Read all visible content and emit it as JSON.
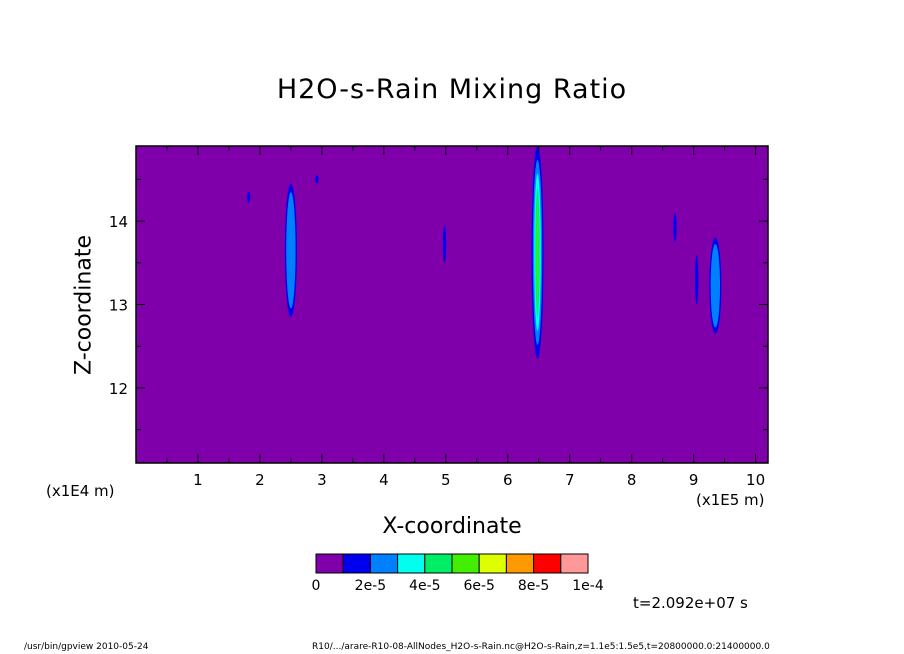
{
  "chart_data": {
    "type": "heatmap",
    "title": "H2O-s-Rain Mixing Ratio",
    "xlabel": "X-coordinate",
    "ylabel": "Z-coordinate",
    "x_multiplier": "(x1E5 m)",
    "y_multiplier": "(x1E4 m)",
    "xlim": [
      0,
      10.2
    ],
    "ylim": [
      11.1,
      14.9
    ],
    "x_ticks": [
      1,
      2,
      3,
      4,
      5,
      6,
      7,
      8,
      9,
      10
    ],
    "y_ticks": [
      12,
      13,
      14
    ],
    "background_value": 0,
    "colorbar": {
      "colors": [
        "#7f00aa",
        "#0000ee",
        "#0080ff",
        "#00ffee",
        "#00ee66",
        "#44ee00",
        "#ddff00",
        "#ff9900",
        "#ff0000",
        "#ff9999"
      ],
      "labels": [
        "0",
        "2e-5",
        "4e-5",
        "6e-5",
        "8e-5",
        "1e-4"
      ]
    },
    "features": [
      {
        "x": 2.5,
        "z_min": 12.85,
        "z_max": 14.45,
        "level": 2
      },
      {
        "x": 6.48,
        "z_min": 12.35,
        "z_max": 14.9,
        "level": 5
      },
      {
        "x": 9.35,
        "z_min": 12.65,
        "z_max": 13.8,
        "level": 2
      },
      {
        "x": 1.82,
        "z_min": 14.22,
        "z_max": 14.35,
        "level": 1
      },
      {
        "x": 2.92,
        "z_min": 14.45,
        "z_max": 14.55,
        "level": 1
      },
      {
        "x": 4.98,
        "z_min": 13.5,
        "z_max": 13.95,
        "level": 1
      },
      {
        "x": 8.7,
        "z_min": 13.75,
        "z_max": 14.1,
        "level": 1
      },
      {
        "x": 9.05,
        "z_min": 13.0,
        "z_max": 13.6,
        "level": 1
      }
    ]
  },
  "time_label": "t=2.092e+07 s",
  "footer": {
    "left": "/usr/bin/gpview   2010-05-24",
    "right": "R10/.../arare-R10-08-AllNodes_H2O-s-Rain.nc@H2O-s-Rain,z=1.1e5:1.5e5,t=20800000.0:21400000.0"
  }
}
